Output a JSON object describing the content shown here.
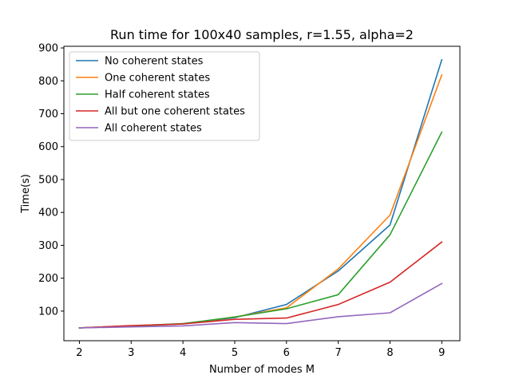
{
  "chart_data": {
    "type": "line",
    "title": "Run time for 100x40 samples, r=1.55, alpha=2",
    "xlabel": "Number of modes M",
    "ylabel": "Time(s)",
    "x": [
      2,
      3,
      4,
      5,
      6,
      7,
      8,
      9
    ],
    "xlim": [
      1.7,
      9.35
    ],
    "ylim": [
      10,
      905
    ],
    "xticks": [
      "2",
      "3",
      "4",
      "5",
      "6",
      "7",
      "8",
      "9"
    ],
    "yticks": [
      "100",
      "200",
      "300",
      "400",
      "500",
      "600",
      "700",
      "800",
      "900"
    ],
    "grid": false,
    "legend_position": "top-left",
    "series": [
      {
        "name": "No coherent states",
        "color": "#1f77b4",
        "values": [
          49,
          54,
          61,
          80,
          120,
          222,
          362,
          864
        ]
      },
      {
        "name": "One coherent states",
        "color": "#ff7f0e",
        "values": [
          49,
          55,
          61,
          82,
          110,
          228,
          392,
          818
        ]
      },
      {
        "name": "Half coherent states",
        "color": "#2ca02c",
        "values": [
          49,
          55,
          62,
          82,
          107,
          150,
          332,
          644
        ]
      },
      {
        "name": "All but one coherent states",
        "color": "#d62728",
        "values": [
          49,
          56,
          61,
          75,
          79,
          120,
          188,
          310
        ]
      },
      {
        "name": "All coherent states",
        "color": "#9467bd",
        "values": [
          49,
          52,
          55,
          65,
          62,
          83,
          95,
          184
        ]
      }
    ]
  }
}
